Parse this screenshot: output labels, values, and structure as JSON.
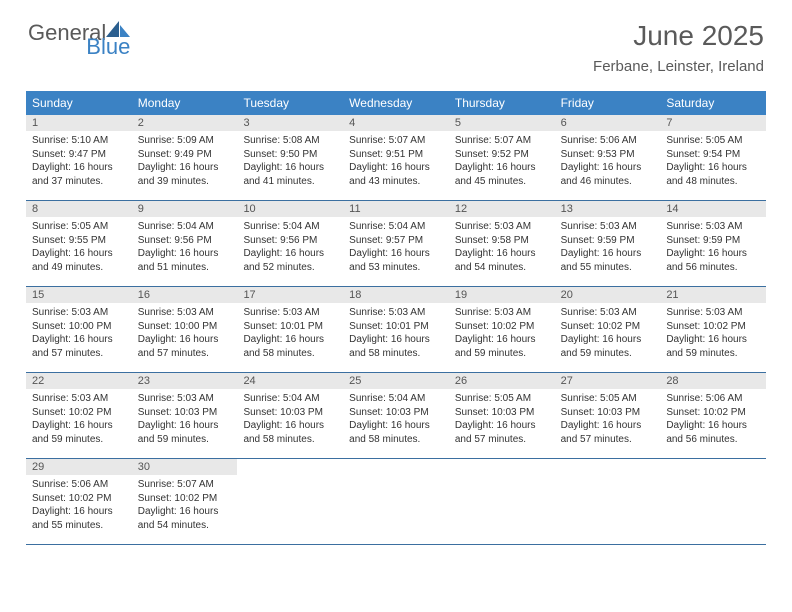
{
  "logo": {
    "text_general": "General",
    "text_blue": "Blue",
    "accent_color": "#3b82c4",
    "text_color": "#5a5a5a"
  },
  "header": {
    "title": "June 2025",
    "subtitle": "Ferbane, Leinster, Ireland"
  },
  "calendar": {
    "header_bg": "#3b82c4",
    "header_text_color": "#ffffff",
    "daynum_bg": "#e8e8e8",
    "border_color": "#3b6fa0",
    "days": [
      "Sunday",
      "Monday",
      "Tuesday",
      "Wednesday",
      "Thursday",
      "Friday",
      "Saturday"
    ],
    "weeks": [
      [
        {
          "n": "1",
          "sr": "Sunrise: 5:10 AM",
          "ss": "Sunset: 9:47 PM",
          "dl": "Daylight: 16 hours and 37 minutes."
        },
        {
          "n": "2",
          "sr": "Sunrise: 5:09 AM",
          "ss": "Sunset: 9:49 PM",
          "dl": "Daylight: 16 hours and 39 minutes."
        },
        {
          "n": "3",
          "sr": "Sunrise: 5:08 AM",
          "ss": "Sunset: 9:50 PM",
          "dl": "Daylight: 16 hours and 41 minutes."
        },
        {
          "n": "4",
          "sr": "Sunrise: 5:07 AM",
          "ss": "Sunset: 9:51 PM",
          "dl": "Daylight: 16 hours and 43 minutes."
        },
        {
          "n": "5",
          "sr": "Sunrise: 5:07 AM",
          "ss": "Sunset: 9:52 PM",
          "dl": "Daylight: 16 hours and 45 minutes."
        },
        {
          "n": "6",
          "sr": "Sunrise: 5:06 AM",
          "ss": "Sunset: 9:53 PM",
          "dl": "Daylight: 16 hours and 46 minutes."
        },
        {
          "n": "7",
          "sr": "Sunrise: 5:05 AM",
          "ss": "Sunset: 9:54 PM",
          "dl": "Daylight: 16 hours and 48 minutes."
        }
      ],
      [
        {
          "n": "8",
          "sr": "Sunrise: 5:05 AM",
          "ss": "Sunset: 9:55 PM",
          "dl": "Daylight: 16 hours and 49 minutes."
        },
        {
          "n": "9",
          "sr": "Sunrise: 5:04 AM",
          "ss": "Sunset: 9:56 PM",
          "dl": "Daylight: 16 hours and 51 minutes."
        },
        {
          "n": "10",
          "sr": "Sunrise: 5:04 AM",
          "ss": "Sunset: 9:56 PM",
          "dl": "Daylight: 16 hours and 52 minutes."
        },
        {
          "n": "11",
          "sr": "Sunrise: 5:04 AM",
          "ss": "Sunset: 9:57 PM",
          "dl": "Daylight: 16 hours and 53 minutes."
        },
        {
          "n": "12",
          "sr": "Sunrise: 5:03 AM",
          "ss": "Sunset: 9:58 PM",
          "dl": "Daylight: 16 hours and 54 minutes."
        },
        {
          "n": "13",
          "sr": "Sunrise: 5:03 AM",
          "ss": "Sunset: 9:59 PM",
          "dl": "Daylight: 16 hours and 55 minutes."
        },
        {
          "n": "14",
          "sr": "Sunrise: 5:03 AM",
          "ss": "Sunset: 9:59 PM",
          "dl": "Daylight: 16 hours and 56 minutes."
        }
      ],
      [
        {
          "n": "15",
          "sr": "Sunrise: 5:03 AM",
          "ss": "Sunset: 10:00 PM",
          "dl": "Daylight: 16 hours and 57 minutes."
        },
        {
          "n": "16",
          "sr": "Sunrise: 5:03 AM",
          "ss": "Sunset: 10:00 PM",
          "dl": "Daylight: 16 hours and 57 minutes."
        },
        {
          "n": "17",
          "sr": "Sunrise: 5:03 AM",
          "ss": "Sunset: 10:01 PM",
          "dl": "Daylight: 16 hours and 58 minutes."
        },
        {
          "n": "18",
          "sr": "Sunrise: 5:03 AM",
          "ss": "Sunset: 10:01 PM",
          "dl": "Daylight: 16 hours and 58 minutes."
        },
        {
          "n": "19",
          "sr": "Sunrise: 5:03 AM",
          "ss": "Sunset: 10:02 PM",
          "dl": "Daylight: 16 hours and 59 minutes."
        },
        {
          "n": "20",
          "sr": "Sunrise: 5:03 AM",
          "ss": "Sunset: 10:02 PM",
          "dl": "Daylight: 16 hours and 59 minutes."
        },
        {
          "n": "21",
          "sr": "Sunrise: 5:03 AM",
          "ss": "Sunset: 10:02 PM",
          "dl": "Daylight: 16 hours and 59 minutes."
        }
      ],
      [
        {
          "n": "22",
          "sr": "Sunrise: 5:03 AM",
          "ss": "Sunset: 10:02 PM",
          "dl": "Daylight: 16 hours and 59 minutes."
        },
        {
          "n": "23",
          "sr": "Sunrise: 5:03 AM",
          "ss": "Sunset: 10:03 PM",
          "dl": "Daylight: 16 hours and 59 minutes."
        },
        {
          "n": "24",
          "sr": "Sunrise: 5:04 AM",
          "ss": "Sunset: 10:03 PM",
          "dl": "Daylight: 16 hours and 58 minutes."
        },
        {
          "n": "25",
          "sr": "Sunrise: 5:04 AM",
          "ss": "Sunset: 10:03 PM",
          "dl": "Daylight: 16 hours and 58 minutes."
        },
        {
          "n": "26",
          "sr": "Sunrise: 5:05 AM",
          "ss": "Sunset: 10:03 PM",
          "dl": "Daylight: 16 hours and 57 minutes."
        },
        {
          "n": "27",
          "sr": "Sunrise: 5:05 AM",
          "ss": "Sunset: 10:03 PM",
          "dl": "Daylight: 16 hours and 57 minutes."
        },
        {
          "n": "28",
          "sr": "Sunrise: 5:06 AM",
          "ss": "Sunset: 10:02 PM",
          "dl": "Daylight: 16 hours and 56 minutes."
        }
      ],
      [
        {
          "n": "29",
          "sr": "Sunrise: 5:06 AM",
          "ss": "Sunset: 10:02 PM",
          "dl": "Daylight: 16 hours and 55 minutes."
        },
        {
          "n": "30",
          "sr": "Sunrise: 5:07 AM",
          "ss": "Sunset: 10:02 PM",
          "dl": "Daylight: 16 hours and 54 minutes."
        },
        null,
        null,
        null,
        null,
        null
      ]
    ]
  }
}
